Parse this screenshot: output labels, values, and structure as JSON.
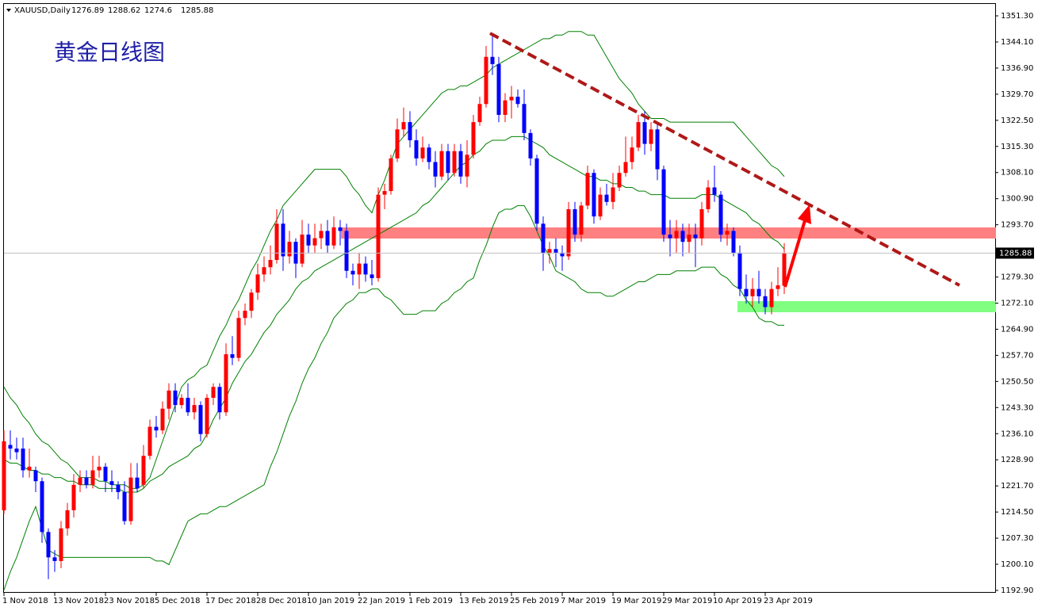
{
  "chart_data": {
    "type": "candlestick",
    "symbol": "XAUUSD,Daily",
    "title": "黄金日线图",
    "up_color": "#ff0000",
    "down_color": "#0000ff",
    "categories": [
      "1 Nov 2018",
      null,
      null,
      null,
      null,
      null,
      null,
      null,
      "13 Nov 2018",
      null,
      null,
      null,
      null,
      null,
      null,
      null,
      "23 Nov 2018",
      null,
      null,
      null,
      null,
      null,
      null,
      null,
      "5 Dec 2018",
      null,
      null,
      null,
      null,
      null,
      null,
      null,
      "17 Dec 2018",
      null,
      null,
      null,
      null,
      null,
      null,
      null,
      "28 Dec 2018",
      null,
      null,
      null,
      null,
      null,
      null,
      null,
      "10 Jan 2019",
      null,
      null,
      null,
      null,
      null,
      null,
      null,
      "22 Jan 2019",
      null,
      null,
      null,
      null,
      null,
      null,
      null,
      "1 Feb 2019",
      null,
      null,
      null,
      null,
      null,
      null,
      null,
      "13 Feb 2019",
      null,
      null,
      null,
      null,
      null,
      null,
      null,
      "25 Feb 2019",
      null,
      null,
      null,
      null,
      null,
      null,
      null,
      "7 Mar 2019",
      null,
      null,
      null,
      null,
      null,
      null,
      null,
      "19 Mar 2019",
      null,
      null,
      null,
      null,
      null,
      null,
      null,
      "29 Mar 2019",
      null,
      null,
      null,
      null,
      null,
      null,
      null,
      "10 Apr 2019",
      null,
      null,
      null,
      null,
      null,
      null,
      null,
      "23 Apr 2019",
      null,
      null,
      null
    ],
    "candles": [
      [
        1215,
        1237,
        1214,
        1234
      ],
      [
        1233,
        1237,
        1229,
        1232
      ],
      [
        1232,
        1235,
        1229,
        1231
      ],
      [
        1232,
        1235,
        1224,
        1226
      ],
      [
        1226,
        1232,
        1224,
        1227
      ],
      [
        1226,
        1227,
        1220,
        1223
      ],
      [
        1223,
        1224,
        1206,
        1209
      ],
      [
        1209,
        1210,
        1196,
        1202
      ],
      [
        1202,
        1204,
        1198,
        1201
      ],
      [
        1201,
        1212,
        1199,
        1210
      ],
      [
        1210,
        1217,
        1208,
        1215
      ],
      [
        1215,
        1225,
        1213,
        1222
      ],
      [
        1222,
        1226,
        1220,
        1224
      ],
      [
        1224,
        1226,
        1221,
        1222
      ],
      [
        1222,
        1230,
        1221,
        1226
      ],
      [
        1226,
        1230,
        1224,
        1227
      ],
      [
        1227,
        1228,
        1220,
        1223
      ],
      [
        1223,
        1226,
        1220,
        1222
      ],
      [
        1222,
        1223,
        1218,
        1220
      ],
      [
        1220,
        1223,
        1211,
        1212
      ],
      [
        1212,
        1228,
        1211,
        1224
      ],
      [
        1224,
        1228,
        1220,
        1221
      ],
      [
        1222,
        1233,
        1221,
        1230
      ],
      [
        1230,
        1240,
        1229,
        1238
      ],
      [
        1238,
        1241,
        1235,
        1237
      ],
      [
        1237,
        1245,
        1236,
        1243
      ],
      [
        1243,
        1250,
        1240,
        1248
      ],
      [
        1248,
        1250,
        1242,
        1244
      ],
      [
        1244,
        1247,
        1243,
        1246
      ],
      [
        1246,
        1250,
        1241,
        1242
      ],
      [
        1242,
        1246,
        1240,
        1244
      ],
      [
        1244,
        1245,
        1234,
        1236
      ],
      [
        1236,
        1247,
        1235,
        1246
      ],
      [
        1246,
        1250,
        1244,
        1249
      ],
      [
        1249,
        1250,
        1240,
        1242
      ],
      [
        1242,
        1261,
        1241,
        1258
      ],
      [
        1258,
        1263,
        1255,
        1257
      ],
      [
        1257,
        1270,
        1256,
        1268
      ],
      [
        1268,
        1272,
        1266,
        1270
      ],
      [
        1270,
        1276,
        1268,
        1275
      ],
      [
        1275,
        1283,
        1273,
        1280
      ],
      [
        1280,
        1285,
        1278,
        1282
      ],
      [
        1282,
        1288,
        1280,
        1284
      ],
      [
        1284,
        1298,
        1283,
        1294
      ],
      [
        1294,
        1298,
        1281,
        1285
      ],
      [
        1285,
        1292,
        1283,
        1289
      ],
      [
        1289,
        1290,
        1279,
        1283
      ],
      [
        1283,
        1295,
        1282,
        1291
      ],
      [
        1291,
        1294,
        1286,
        1288
      ],
      [
        1288,
        1294,
        1286,
        1290
      ],
      [
        1290,
        1294,
        1287,
        1292
      ],
      [
        1292,
        1295,
        1286,
        1288
      ],
      [
        1288,
        1296,
        1287,
        1293
      ],
      [
        1293,
        1295,
        1288,
        1292
      ],
      [
        1292,
        1294,
        1279,
        1281
      ],
      [
        1281,
        1283,
        1277,
        1280
      ],
      [
        1280,
        1286,
        1276,
        1283
      ],
      [
        1283,
        1285,
        1278,
        1280
      ],
      [
        1280,
        1284,
        1277,
        1279
      ],
      [
        1279,
        1304,
        1278,
        1302
      ],
      [
        1302,
        1305,
        1298,
        1303
      ],
      [
        1303,
        1313,
        1302,
        1312
      ],
      [
        1312,
        1323,
        1311,
        1320
      ],
      [
        1320,
        1326,
        1318,
        1322
      ],
      [
        1322,
        1325,
        1315,
        1317
      ],
      [
        1317,
        1320,
        1310,
        1312
      ],
      [
        1312,
        1318,
        1311,
        1315
      ],
      [
        1315,
        1316,
        1309,
        1311
      ],
      [
        1311,
        1314,
        1304,
        1307
      ],
      [
        1307,
        1316,
        1306,
        1314
      ],
      [
        1314,
        1316,
        1306,
        1308
      ],
      [
        1308,
        1316,
        1307,
        1314
      ],
      [
        1314,
        1316,
        1305,
        1307
      ],
      [
        1307,
        1317,
        1304,
        1313
      ],
      [
        1313,
        1324,
        1312,
        1322
      ],
      [
        1322,
        1329,
        1321,
        1327
      ],
      [
        1327,
        1343,
        1326,
        1340
      ],
      [
        1340,
        1346,
        1335,
        1338
      ],
      [
        1338,
        1340,
        1322,
        1324
      ],
      [
        1324,
        1330,
        1322,
        1328
      ],
      [
        1328,
        1332,
        1323,
        1329
      ],
      [
        1329,
        1331,
        1326,
        1327
      ],
      [
        1327,
        1331,
        1317,
        1319
      ],
      [
        1319,
        1320,
        1310,
        1312
      ],
      [
        1312,
        1313,
        1292,
        1294
      ],
      [
        1294,
        1296,
        1281,
        1286
      ],
      [
        1286,
        1289,
        1283,
        1287
      ],
      [
        1287,
        1290,
        1282,
        1286
      ],
      [
        1286,
        1288,
        1281,
        1285
      ],
      [
        1285,
        1300,
        1284,
        1298
      ],
      [
        1298,
        1300,
        1289,
        1291
      ],
      [
        1291,
        1300,
        1289,
        1299
      ],
      [
        1299,
        1310,
        1298,
        1308
      ],
      [
        1308,
        1309,
        1294,
        1296
      ],
      [
        1296,
        1304,
        1295,
        1302
      ],
      [
        1302,
        1305,
        1299,
        1300
      ],
      [
        1300,
        1308,
        1298,
        1304
      ],
      [
        1304,
        1310,
        1303,
        1308
      ],
      [
        1308,
        1318,
        1307,
        1311
      ],
      [
        1311,
        1318,
        1309,
        1315
      ],
      [
        1315,
        1324,
        1314,
        1322
      ],
      [
        1322,
        1325,
        1313,
        1316
      ],
      [
        1316,
        1322,
        1314,
        1320
      ],
      [
        1320,
        1322,
        1306,
        1309
      ],
      [
        1309,
        1310,
        1289,
        1291
      ],
      [
        1291,
        1295,
        1285,
        1290
      ],
      [
        1290,
        1295,
        1286,
        1292
      ],
      [
        1292,
        1294,
        1285,
        1289
      ],
      [
        1289,
        1294,
        1286,
        1291
      ],
      [
        1291,
        1294,
        1282,
        1290
      ],
      [
        1290,
        1300,
        1288,
        1298
      ],
      [
        1298,
        1306,
        1297,
        1304
      ],
      [
        1304,
        1310,
        1300,
        1302
      ],
      [
        1302,
        1303,
        1289,
        1291
      ],
      [
        1291,
        1294,
        1288,
        1292
      ],
      [
        1292,
        1293,
        1285,
        1286
      ],
      [
        1286,
        1288,
        1274,
        1276
      ],
      [
        1276,
        1280,
        1272,
        1274
      ],
      [
        1274,
        1279,
        1271,
        1276
      ],
      [
        1276,
        1281,
        1272,
        1274
      ],
      [
        1274,
        1276,
        1269,
        1271
      ],
      [
        1271,
        1278,
        1269,
        1276
      ],
      [
        1276,
        1282,
        1274,
        1277
      ],
      [
        1276.89,
        1288.62,
        1274.6,
        1285.88
      ]
    ],
    "bands": [
      {
        "color": "#008000",
        "values": [
          1249,
          1246,
          1244,
          1241,
          1239,
          1236,
          1234,
          1233,
          1231,
          1229,
          1228,
          1226,
          1224,
          1224,
          1224,
          1223,
          1223,
          1222,
          1222,
          1222,
          1221,
          1221,
          1222,
          1224,
          1229,
          1234,
          1239,
          1244,
          1249,
          1251,
          1252,
          1254,
          1255,
          1259,
          1263,
          1266,
          1270,
          1273,
          1277,
          1281,
          1284,
          1288,
          1292,
          1295,
          1299,
          1301,
          1303,
          1305,
          1307,
          1309,
          1309,
          1309,
          1309,
          1309,
          1307,
          1304,
          1302,
          1299,
          1297,
          1302,
          1306,
          1311,
          1316,
          1318,
          1320,
          1322,
          1324,
          1326,
          1328,
          1330,
          1331,
          1331,
          1332,
          1332,
          1333,
          1334,
          1335,
          1337,
          1338,
          1339,
          1340,
          1341,
          1342,
          1343,
          1344,
          1345,
          1345,
          1346,
          1346,
          1347,
          1347,
          1347,
          1346,
          1346,
          1343,
          1340,
          1337,
          1334,
          1332,
          1330,
          1327,
          1325,
          1323,
          1323,
          1323,
          1322,
          1322,
          1322,
          1322,
          1322,
          1322,
          1322,
          1322,
          1322,
          1322,
          1322,
          1320,
          1318,
          1316,
          1314,
          1312,
          1310,
          1309,
          1307
        ]
      },
      {
        "color": "#008000",
        "values": [
          1229,
          1228,
          1228,
          1227,
          1226,
          1226,
          1225,
          1225,
          1224,
          1224,
          1223,
          1223,
          1222,
          1222,
          1222,
          1221,
          1221,
          1221,
          1221,
          1220,
          1220,
          1220,
          1221,
          1223,
          1224,
          1225,
          1227,
          1228,
          1229,
          1230,
          1232,
          1233,
          1236,
          1240,
          1243,
          1246,
          1250,
          1253,
          1256,
          1258,
          1261,
          1264,
          1266,
          1269,
          1271,
          1273,
          1276,
          1278,
          1279,
          1281,
          1282,
          1283,
          1284,
          1285,
          1286,
          1287,
          1288,
          1289,
          1290,
          1291,
          1292,
          1293,
          1294,
          1295,
          1296,
          1297,
          1299,
          1300,
          1302,
          1304,
          1306,
          1308,
          1310,
          1311,
          1313,
          1314,
          1316,
          1317,
          1317,
          1317,
          1318,
          1318,
          1318,
          1317,
          1316,
          1315,
          1313,
          1312,
          1311,
          1310,
          1309,
          1308,
          1307,
          1307,
          1306,
          1306,
          1305,
          1305,
          1304,
          1304,
          1303,
          1303,
          1302,
          1302,
          1302,
          1301,
          1301,
          1301,
          1301,
          1301,
          1302,
          1302,
          1302,
          1301,
          1300,
          1299,
          1298,
          1297,
          1295,
          1294,
          1292,
          1290,
          1289,
          1287
        ]
      },
      {
        "color": "#008000",
        "values": [
          1193,
          1198,
          1202,
          1207,
          1212,
          1216,
          1210,
          1204,
          1203,
          1202,
          1202,
          1202,
          1202,
          1202,
          1202,
          1202,
          1202,
          1202,
          1202,
          1202,
          1202,
          1202,
          1202,
          1202,
          1201,
          1201,
          1200,
          1204,
          1208,
          1212,
          1213,
          1214,
          1214,
          1215,
          1216,
          1216,
          1217,
          1218,
          1219,
          1220,
          1221,
          1222,
          1227,
          1231,
          1236,
          1241,
          1245,
          1250,
          1254,
          1257,
          1261,
          1264,
          1268,
          1270,
          1272,
          1273,
          1275,
          1275,
          1276,
          1276,
          1274,
          1273,
          1271,
          1269,
          1269,
          1269,
          1270,
          1270,
          1270,
          1272,
          1273,
          1275,
          1276,
          1278,
          1279,
          1284,
          1288,
          1293,
          1297,
          1298,
          1298,
          1299,
          1299,
          1296,
          1292,
          1288,
          1285,
          1281,
          1280,
          1279,
          1278,
          1276,
          1275,
          1275,
          1275,
          1274,
          1274,
          1275,
          1276,
          1277,
          1278,
          1278,
          1279,
          1280,
          1280,
          1280,
          1281,
          1281,
          1281,
          1281,
          1282,
          1282,
          1282,
          1280,
          1279,
          1277,
          1276,
          1273,
          1271,
          1268,
          1267,
          1267,
          1266,
          1266
        ]
      }
    ],
    "ylim": [
      1192.24,
      1354.58
    ],
    "yticks": [
      {
        "value": 1351.3,
        "label": "1351.30"
      },
      {
        "value": 1344.1,
        "label": "1344.10"
      },
      {
        "value": 1336.9,
        "label": "1336.90"
      },
      {
        "value": 1329.7,
        "label": "1329.70"
      },
      {
        "value": 1322.5,
        "label": "1322.50"
      },
      {
        "value": 1315.3,
        "label": "1315.30"
      },
      {
        "value": 1308.1,
        "label": "1308.10"
      },
      {
        "value": 1300.9,
        "label": "1300.90"
      },
      {
        "value": 1293.7,
        "label": "1293.70"
      },
      {
        "value": 1279.3,
        "label": "1279.30"
      },
      {
        "value": 1272.1,
        "label": "1272.10"
      },
      {
        "value": 1264.9,
        "label": "1264.90"
      },
      {
        "value": 1257.7,
        "label": "1257.70"
      },
      {
        "value": 1250.5,
        "label": "1250.50"
      },
      {
        "value": 1243.3,
        "label": "1243.30"
      },
      {
        "value": 1236.1,
        "label": "1236.10"
      },
      {
        "value": 1228.9,
        "label": "1228.90"
      },
      {
        "value": 1221.7,
        "label": "1221.70"
      },
      {
        "value": 1214.5,
        "label": "1214.50"
      },
      {
        "value": 1207.3,
        "label": "1207.30"
      },
      {
        "value": 1200.1,
        "label": "1200.10"
      },
      {
        "value": 1192.9,
        "label": "1192.90"
      }
    ]
  }
}
